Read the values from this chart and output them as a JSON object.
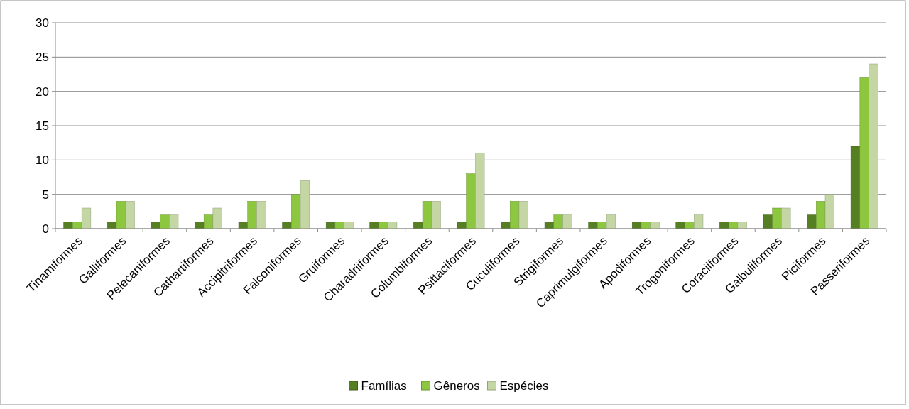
{
  "chart_data": {
    "type": "bar",
    "categories": [
      "Tinamiformes",
      "Galliformes",
      "Pelecaniformes",
      "Cathartiformes",
      "Accipitriformes",
      "Falconiformes",
      "Gruiformes",
      "Charadriiformes",
      "Columbiformes",
      "Psittaciformes",
      "Cuculiformes",
      "Strigiformes",
      "Caprimulgiformes",
      "Apodiformes",
      "Trogoniformes",
      "Coraciiformes",
      "Galbuliformes",
      "Piciformes",
      "Passeriformes"
    ],
    "series": [
      {
        "name": "Famílias",
        "color": "#557f22",
        "values": [
          1,
          1,
          1,
          1,
          1,
          1,
          1,
          1,
          1,
          1,
          1,
          1,
          1,
          1,
          1,
          1,
          2,
          2,
          12
        ]
      },
      {
        "name": "Gêneros",
        "color": "#8dc63f",
        "values": [
          1,
          4,
          2,
          2,
          4,
          5,
          1,
          1,
          4,
          8,
          4,
          2,
          1,
          1,
          1,
          1,
          3,
          4,
          22
        ]
      },
      {
        "name": "Espécies",
        "color": "#c3d6a3",
        "values": [
          3,
          4,
          2,
          3,
          4,
          7,
          1,
          1,
          4,
          11,
          4,
          2,
          2,
          1,
          2,
          1,
          3,
          5,
          24
        ]
      }
    ],
    "ylim": [
      0,
      30
    ],
    "yticks": [
      0,
      5,
      10,
      15,
      20,
      25,
      30
    ],
    "grid": "y",
    "legend": "bottom"
  }
}
